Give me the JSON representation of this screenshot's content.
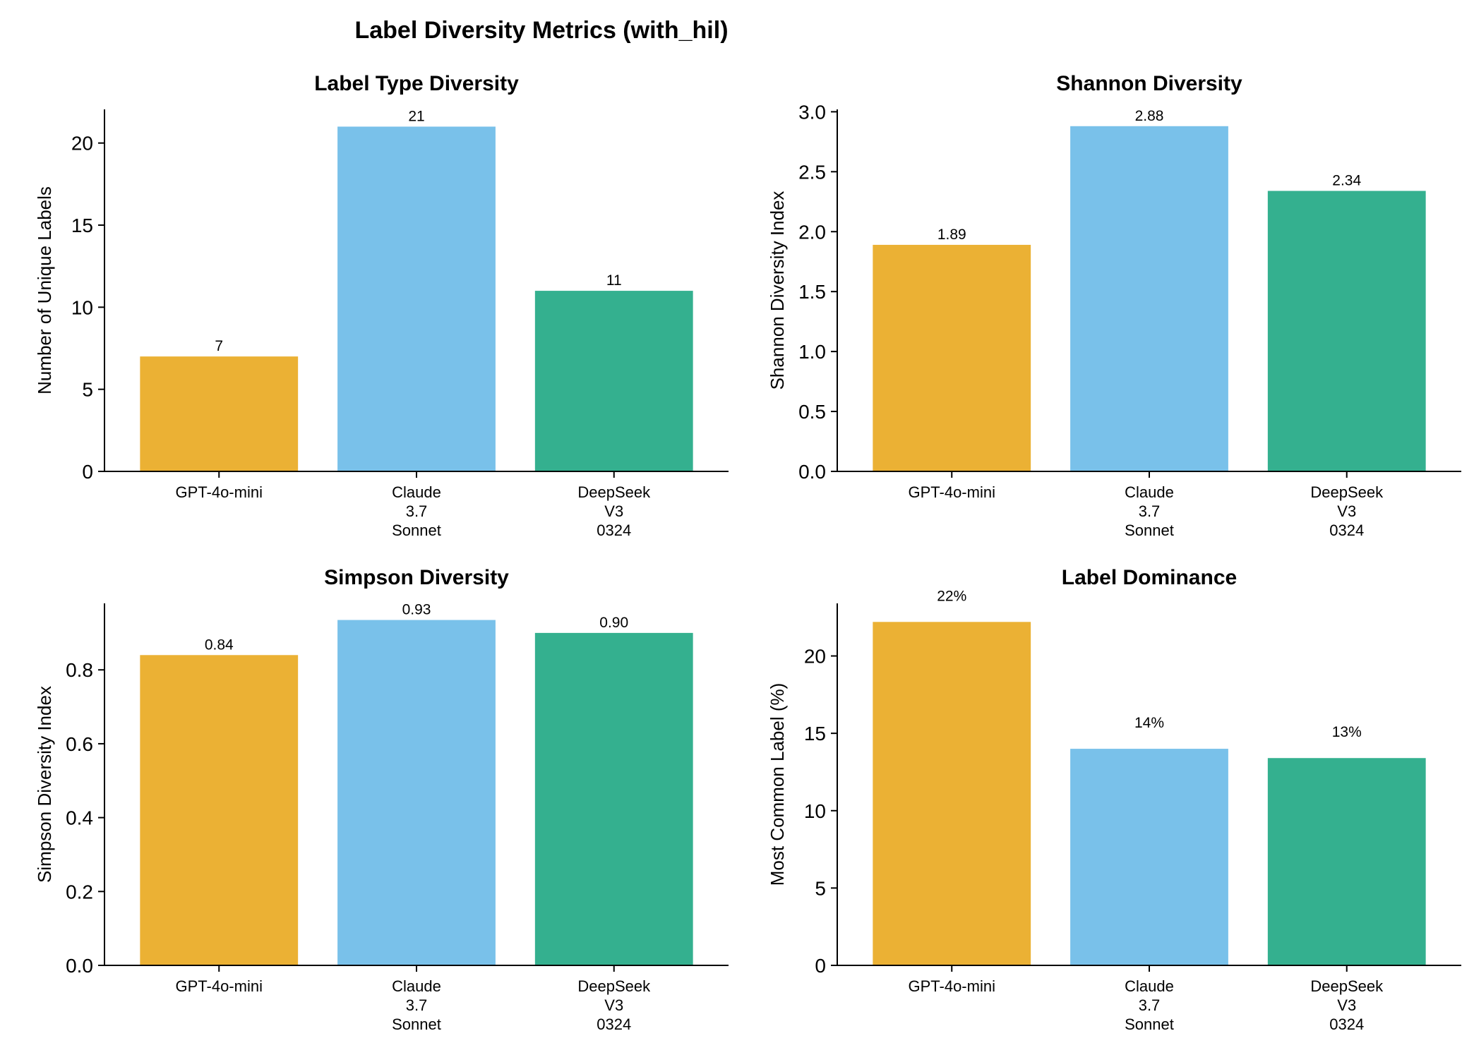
{
  "chart_data": {
    "title": "Label Diversity Metrics (with_hil)",
    "categories": [
      "GPT-4o-mini",
      "Claude 3.7 Sonnet",
      "DeepSeek V3 0324"
    ],
    "category_tick_lines": [
      [
        "GPT-4o-mini"
      ],
      [
        "Claude",
        "3.7",
        "Sonnet"
      ],
      [
        "DeepSeek",
        "V3",
        "0324"
      ]
    ],
    "colors": [
      "#ebb134",
      "#79c1ea",
      "#34b08f"
    ],
    "subplots": [
      {
        "type": "bar",
        "title": "Label Type Diversity",
        "ylabel": "Number of Unique Labels",
        "values": [
          7,
          21,
          11
        ],
        "value_labels": [
          "7",
          "21",
          "11"
        ],
        "ylim": [
          0,
          22.05
        ],
        "yticks": [
          0,
          5,
          10,
          15,
          20
        ],
        "ytick_labels": [
          "0",
          "5",
          "10",
          "15",
          "20"
        ]
      },
      {
        "type": "bar",
        "title": "Shannon Diversity",
        "ylabel": "Shannon Diversity Index",
        "values": [
          1.89,
          2.88,
          2.34
        ],
        "value_labels": [
          "1.89",
          "2.88",
          "2.34"
        ],
        "ylim": [
          0,
          3.02
        ],
        "yticks": [
          0,
          0.5,
          1.0,
          1.5,
          2.0,
          2.5,
          3.0
        ],
        "ytick_labels": [
          "0.0",
          "0.5",
          "1.0",
          "1.5",
          "2.0",
          "2.5",
          "3.0"
        ]
      },
      {
        "type": "bar",
        "title": "Simpson Diversity",
        "ylabel": "Simpson Diversity Index",
        "values": [
          0.84,
          0.935,
          0.9
        ],
        "value_labels": [
          "0.84",
          "0.93",
          "0.90"
        ],
        "ylim": [
          0,
          0.98
        ],
        "yticks": [
          0,
          0.2,
          0.4,
          0.6,
          0.8
        ],
        "ytick_labels": [
          "0.0",
          "0.2",
          "0.4",
          "0.6",
          "0.8"
        ]
      },
      {
        "type": "bar",
        "title": "Label Dominance",
        "ylabel": "Most Common Label (%)",
        "values": [
          22.2,
          14.0,
          13.4
        ],
        "value_labels": [
          "22%",
          "14%",
          "13%"
        ],
        "ylim": [
          0,
          23.4
        ],
        "yticks": [
          0,
          5,
          10,
          15,
          20
        ],
        "ytick_labels": [
          "0",
          "5",
          "10",
          "15",
          "20"
        ]
      }
    ]
  }
}
